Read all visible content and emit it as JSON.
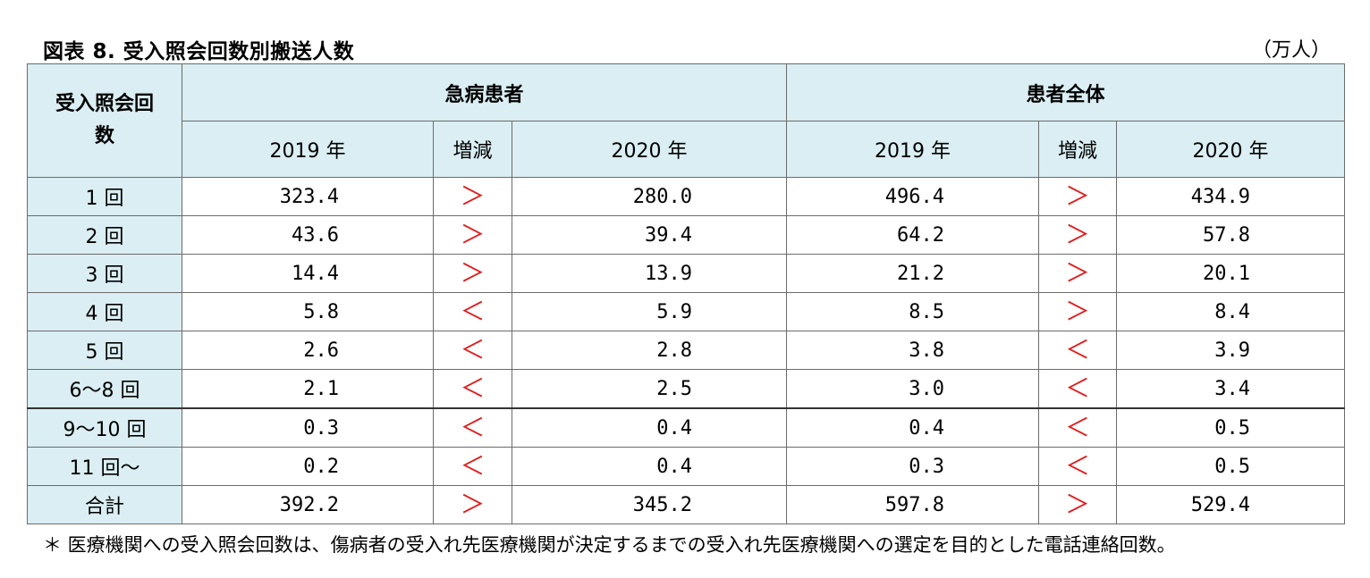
{
  "title": "図表 8.  受入照会回数別搬送人数",
  "unit": "（万人）",
  "header": {
    "row_label": "受入照会回数",
    "groups": [
      "急病患者",
      "患者全体"
    ],
    "subcols": [
      "2019 年",
      "増減",
      "2020 年"
    ]
  },
  "rows": [
    {
      "label": "1 回",
      "a2019": "323.4",
      "acmp": ">",
      "a2020": "280.0",
      "b2019": "496.4",
      "bcmp": ">",
      "b2020": "434.9"
    },
    {
      "label": "2 回",
      "a2019": "43.6",
      "acmp": ">",
      "a2020": "39.4",
      "b2019": "64.2",
      "bcmp": ">",
      "b2020": "57.8"
    },
    {
      "label": "3 回",
      "a2019": "14.4",
      "acmp": ">",
      "a2020": "13.9",
      "b2019": "21.2",
      "bcmp": ">",
      "b2020": "20.1"
    },
    {
      "label": "4 回",
      "a2019": "5.8",
      "acmp": "<",
      "a2020": "5.9",
      "b2019": "8.5",
      "bcmp": ">",
      "b2020": "8.4"
    },
    {
      "label": "5 回",
      "a2019": "2.6",
      "acmp": "<",
      "a2020": "2.8",
      "b2019": "3.8",
      "bcmp": "<",
      "b2020": "3.9"
    },
    {
      "label": "6～8 回",
      "a2019": "2.1",
      "acmp": "<",
      "a2020": "2.5",
      "b2019": "3.0",
      "bcmp": "<",
      "b2020": "3.4"
    },
    {
      "label": "9～10 回",
      "a2019": "0.3",
      "acmp": "<",
      "a2020": "0.4",
      "b2019": "0.4",
      "bcmp": "<",
      "b2020": "0.5"
    },
    {
      "label": "11 回～",
      "a2019": "0.2",
      "acmp": "<",
      "a2020": "0.4",
      "b2019": "0.3",
      "bcmp": "<",
      "b2020": "0.5"
    },
    {
      "label": "合計",
      "a2019": "392.2",
      "acmp": ">",
      "a2020": "345.2",
      "b2019": "597.8",
      "bcmp": ">",
      "b2020": "529.4"
    }
  ],
  "note": "＊ 医療機関への受入照会回数は、傷病者の受入れ先医療機関が決定するまでの受入れ先医療機関への選定を目的とした電話連絡回数。",
  "colors": {
    "header_bg": "#daeef3",
    "comparison": "#e02020"
  }
}
